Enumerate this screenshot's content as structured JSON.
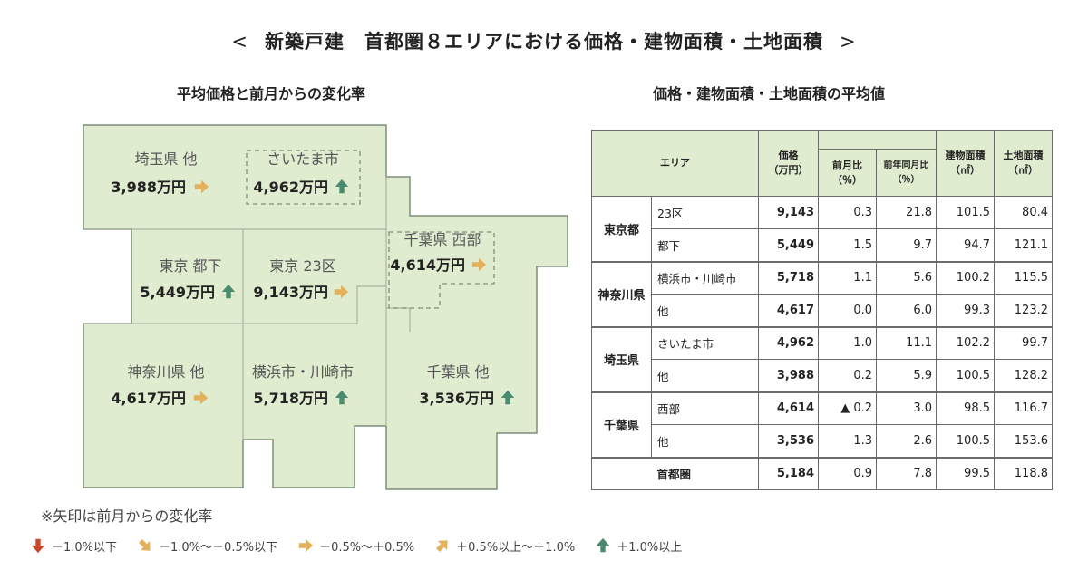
{
  "title": {
    "left_bracket": "<",
    "text": "新築戸建　首都圏８エリアにおける価格・建物面積・土地面積",
    "right_bracket": ">"
  },
  "map_subtitle": "平均価格と前月からの変化率",
  "table_subtitle": "価格・建物面積・土地面積の平均値",
  "colors": {
    "region_fill": "#dfeccf",
    "region_stroke": "#7f8f78",
    "arrow_up": "#4a8a6e",
    "arrow_flat": "#e3b15c",
    "arrow_down": "#c8472a",
    "header_fill": "#dfeccf"
  },
  "map_labels": [
    {
      "name": "埼玉県 他",
      "price": "3,988万円",
      "arrow": "flat"
    },
    {
      "name": "さいたま市",
      "price": "4,962万円",
      "arrow": "up"
    },
    {
      "name": "東京 都下",
      "price": "5,449万円",
      "arrow": "up"
    },
    {
      "name": "東京 23区",
      "price": "9,143万円",
      "arrow": "flat"
    },
    {
      "name": "千葉県 西部",
      "price": "4,614万円",
      "arrow": "flat"
    },
    {
      "name": "神奈川県 他",
      "price": "4,617万円",
      "arrow": "flat"
    },
    {
      "name": "横浜市・川崎市",
      "price": "5,718万円",
      "arrow": "up"
    },
    {
      "name": "千葉県 他",
      "price": "3,536万円",
      "arrow": "up"
    }
  ],
  "table": {
    "headers": {
      "area": "エリア",
      "price_1": "価格",
      "price_2": "（万円）",
      "mom_1": "前月比",
      "mom_2": "（％）",
      "yoy_1": "前年同月比",
      "yoy_2": "（％）",
      "building_1": "建物面積",
      "building_2": "（㎡）",
      "land_1": "土地面積",
      "land_2": "（㎡）"
    },
    "prefs": [
      "東京都",
      "神奈川県",
      "埼玉県",
      "千葉県"
    ],
    "rows": [
      {
        "area": "23区",
        "price": "9,143",
        "mom": "0.3",
        "yoy": "21.8",
        "building": "101.5",
        "land": "80.4"
      },
      {
        "area": "都下",
        "price": "5,449",
        "mom": "1.5",
        "yoy": "9.7",
        "building": "94.7",
        "land": "121.1"
      },
      {
        "area": "横浜市・川崎市",
        "price": "5,718",
        "mom": "1.1",
        "yoy": "5.6",
        "building": "100.2",
        "land": "115.5"
      },
      {
        "area": "他",
        "price": "4,617",
        "mom": "0.0",
        "yoy": "6.0",
        "building": "99.3",
        "land": "123.2"
      },
      {
        "area": "さいたま市",
        "price": "4,962",
        "mom": "1.0",
        "yoy": "11.1",
        "building": "102.2",
        "land": "99.7"
      },
      {
        "area": "他",
        "price": "3,988",
        "mom": "0.2",
        "yoy": "5.9",
        "building": "100.5",
        "land": "128.2"
      },
      {
        "area": "西部",
        "price": "4,614",
        "mom": "▲ 0.2",
        "yoy": "3.0",
        "building": "98.5",
        "land": "116.7"
      },
      {
        "area": "他",
        "price": "3,536",
        "mom": "1.3",
        "yoy": "2.6",
        "building": "100.5",
        "land": "153.6"
      }
    ],
    "total": {
      "area": "首都圏",
      "price": "5,184",
      "mom": "0.9",
      "yoy": "7.8",
      "building": "99.5",
      "land": "118.8"
    }
  },
  "legend": {
    "title": "※矢印は前月からの変化率",
    "items": [
      {
        "arrow": "down",
        "label": "－1.0%以下"
      },
      {
        "arrow": "down-right",
        "label": "－1.0%～－0.5%以下"
      },
      {
        "arrow": "flat",
        "label": "－0.5%～＋0.5%"
      },
      {
        "arrow": "up-right",
        "label": "＋0.5%以上～＋1.0%"
      },
      {
        "arrow": "up",
        "label": "＋1.0%以上"
      }
    ]
  },
  "chart_data": {
    "type": "table",
    "title": "新築戸建　首都圏８エリアにおける価格・建物面積・土地面積",
    "columns": [
      "エリア",
      "価格（万円）",
      "前月比（％）",
      "前年同月比（％）",
      "建物面積（㎡）",
      "土地面積（㎡）"
    ],
    "rows": [
      [
        "東京都 23区",
        9143,
        0.3,
        21.8,
        101.5,
        80.4
      ],
      [
        "東京都 都下",
        5449,
        1.5,
        9.7,
        94.7,
        121.1
      ],
      [
        "神奈川県 横浜市・川崎市",
        5718,
        1.1,
        5.6,
        100.2,
        115.5
      ],
      [
        "神奈川県 他",
        4617,
        0.0,
        6.0,
        99.3,
        123.2
      ],
      [
        "埼玉県 さいたま市",
        4962,
        1.0,
        11.1,
        102.2,
        99.7
      ],
      [
        "埼玉県 他",
        3988,
        0.2,
        5.9,
        100.5,
        128.2
      ],
      [
        "千葉県 西部",
        4614,
        -0.2,
        3.0,
        98.5,
        116.7
      ],
      [
        "千葉県 他",
        3536,
        1.3,
        2.6,
        100.5,
        153.6
      ],
      [
        "首都圏",
        5184,
        0.9,
        7.8,
        99.5,
        118.8
      ]
    ]
  }
}
